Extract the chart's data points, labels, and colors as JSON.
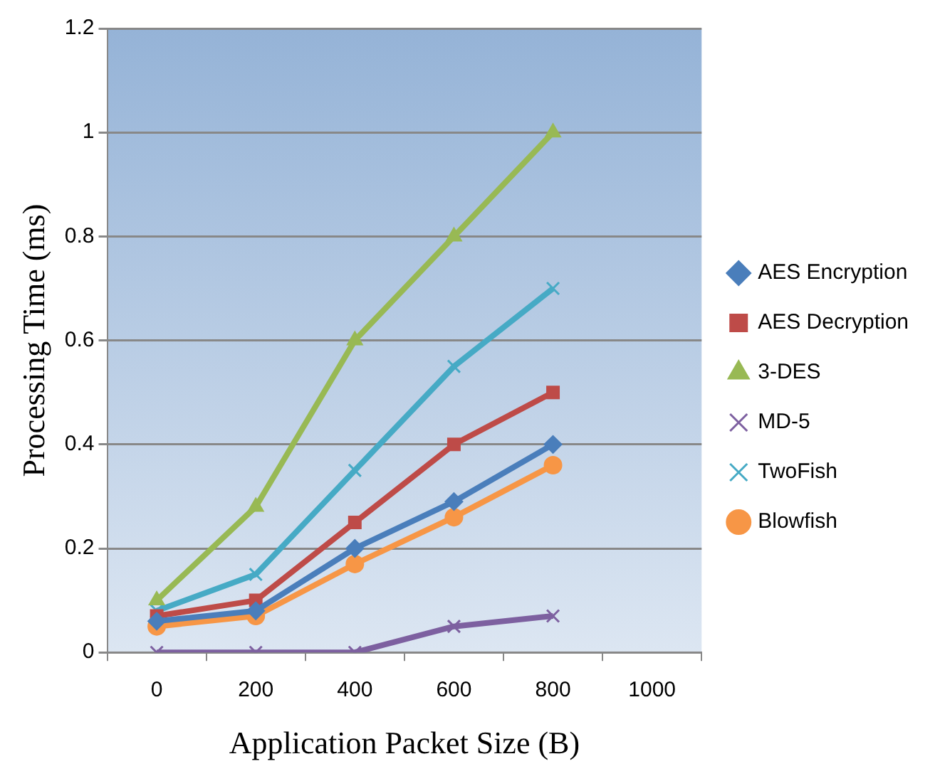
{
  "chart_data": {
    "type": "line",
    "xlabel": "Application Packet Size (B)",
    "ylabel": "Processing Time (ms)",
    "categories": [
      "0",
      "200",
      "400",
      "600",
      "800",
      "1000"
    ],
    "series": [
      {
        "name": "AES Encryption",
        "color": "#4a7ebb",
        "marker": "diamond",
        "values": [
          0.06,
          0.08,
          0.2,
          0.29,
          0.4,
          null
        ]
      },
      {
        "name": "AES Decryption",
        "color": "#be4b48",
        "marker": "square",
        "values": [
          0.07,
          0.1,
          0.25,
          0.4,
          0.5,
          null
        ]
      },
      {
        "name": "3-DES",
        "color": "#98b954",
        "marker": "triangle",
        "values": [
          0.1,
          0.28,
          0.6,
          0.8,
          1.0,
          null
        ]
      },
      {
        "name": "MD-5",
        "color": "#7d60a0",
        "marker": "cross",
        "values": [
          0,
          0,
          0,
          0.05,
          0.07,
          null
        ]
      },
      {
        "name": "TwoFish",
        "color": "#46aac5",
        "marker": "cross",
        "values": [
          0.08,
          0.15,
          0.35,
          0.55,
          0.7,
          null
        ]
      },
      {
        "name": "Blowfish",
        "color": "#f79646",
        "marker": "circle",
        "values": [
          0.05,
          0.07,
          0.17,
          0.26,
          0.36,
          null
        ]
      }
    ],
    "ylim": [
      0,
      1.2
    ],
    "yticks": [
      0,
      0.2,
      0.4,
      0.6,
      0.8,
      1,
      1.2
    ],
    "grid": "y",
    "legend": "right",
    "line_style": "solid"
  }
}
